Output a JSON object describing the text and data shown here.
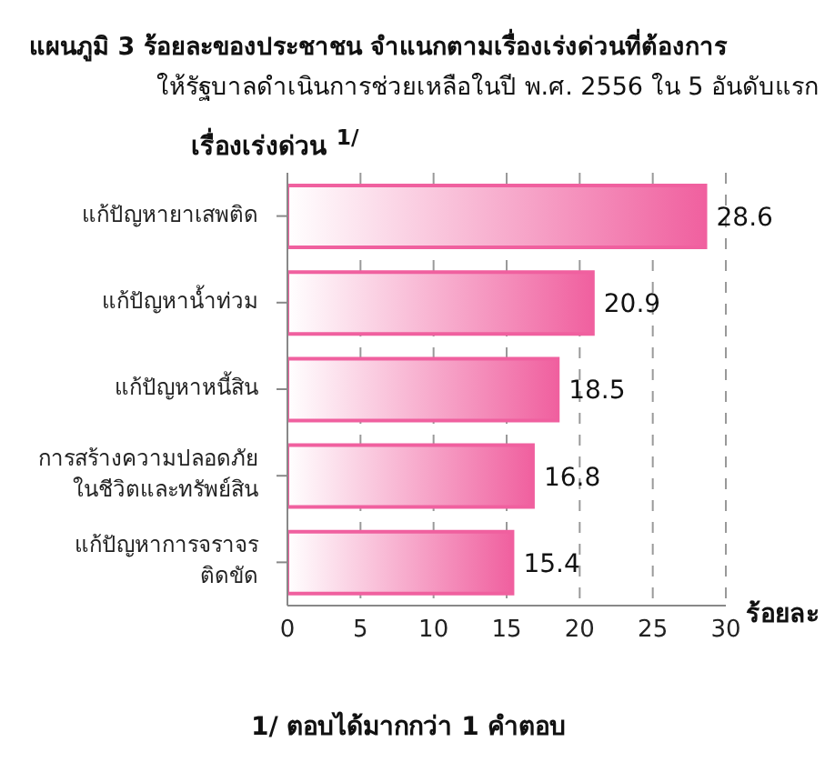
{
  "chart_data": {
    "type": "bar",
    "orientation": "horizontal",
    "title": "แผนภูมิ 3 ร้อยละของประชาชน  จำแนกตามเรื่องเร่งด่วนที่ต้องการ",
    "subtitle": "ให้รัฐบาลดำเนินการช่วยเหลือในปี พ.ศ. 2556 ใน 5 อันดับแรก",
    "ylabel": "เรื่องเร่งด่วน $^{1/}$",
    "xlabel": "ร้อยละ",
    "categories": [
      "แก้ปัญหายาเสพติด",
      "แก้ปัญหาน้ำท่วม",
      "แก้ปัญหาหนี้สิน",
      "การสร้างความปลอดภัย ในชีวิตและทรัพย์สิน",
      "แก้ปัญหาการจราจร ติดขัด"
    ],
    "values": [
      28.6,
      20.9,
      18.5,
      16.8,
      15.4
    ],
    "color": "#f0609f",
    "data_labels": true,
    "xlim": [
      0,
      30
    ],
    "xticks": [
      0,
      5,
      10,
      15,
      20,
      25,
      30
    ],
    "grid": "x",
    "annotations": [
      "1/ ตอบได้มากกว่า 1 คำตอบ"
    ]
  }
}
